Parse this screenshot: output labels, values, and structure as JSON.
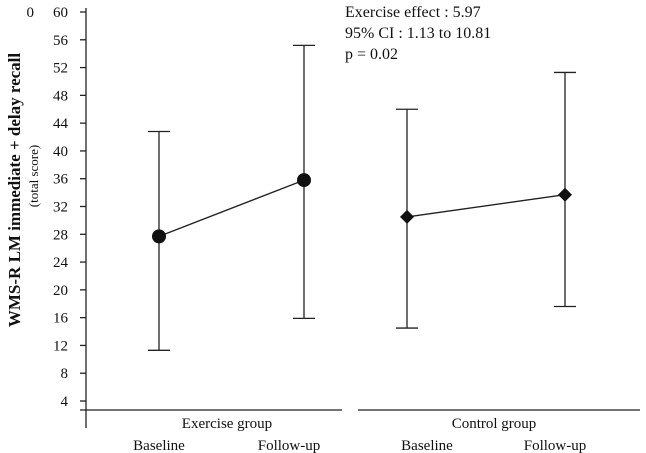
{
  "chart_data": {
    "type": "line",
    "ylabel": "WMS-R LM immediate + delay recall",
    "ylabel_sub": "(total score)",
    "y_origin_label": "0",
    "ylim": [
      4,
      60
    ],
    "yticks": [
      4,
      8,
      12,
      16,
      20,
      24,
      28,
      32,
      36,
      40,
      44,
      48,
      52,
      56,
      60
    ],
    "groups": [
      {
        "name": "Exercise group",
        "marker": "circle",
        "timepoints": [
          "Baseline",
          "Follow-up"
        ],
        "means": [
          27.7,
          35.8
        ],
        "upper": [
          42.8,
          55.2
        ],
        "lower": [
          11.3,
          15.9
        ]
      },
      {
        "name": "Control group",
        "marker": "diamond",
        "timepoints": [
          "Baseline",
          "Follow-up"
        ],
        "means": [
          30.5,
          33.7
        ],
        "upper": [
          46.0,
          51.3
        ],
        "lower": [
          14.5,
          17.6
        ]
      }
    ],
    "annotations": [
      "Exercise effect : 5.97",
      "95% CI : 1.13 to 10.81",
      "p = 0.02"
    ]
  }
}
